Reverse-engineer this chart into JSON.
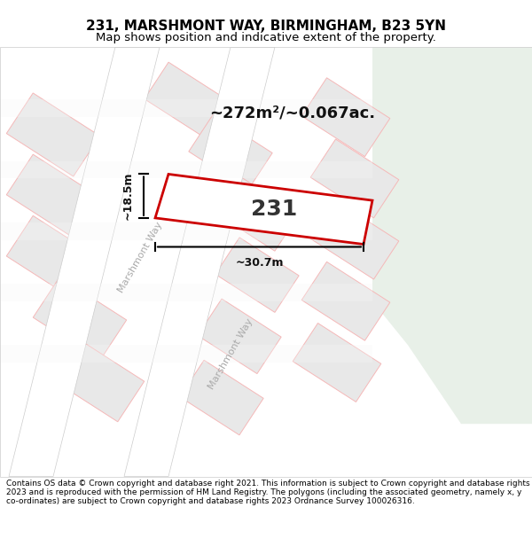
{
  "title": "231, MARSHMONT WAY, BIRMINGHAM, B23 5YN",
  "subtitle": "Map shows position and indicative extent of the property.",
  "footer": "Contains OS data © Crown copyright and database right 2021. This information is subject to Crown copyright and database rights 2023 and is reproduced with the permission of HM Land Registry. The polygons (including the associated geometry, namely x, y co-ordinates) are subject to Crown copyright and database rights 2023 Ordnance Survey 100026316.",
  "area_label": "~272m²/~0.067ac.",
  "width_label": "~30.7m",
  "height_label": "~18.5m",
  "plot_number": "231",
  "bg_color": "#f5f5f5",
  "map_bg": "#f0f0f0",
  "green_area": "#e8f0e8",
  "road_color": "#e8e8e8",
  "plot_line_color": "#cc0000",
  "other_lines_color": "#f0b0b0",
  "street_label1": "Marshmont Way",
  "street_label2": "Marshmont Way"
}
